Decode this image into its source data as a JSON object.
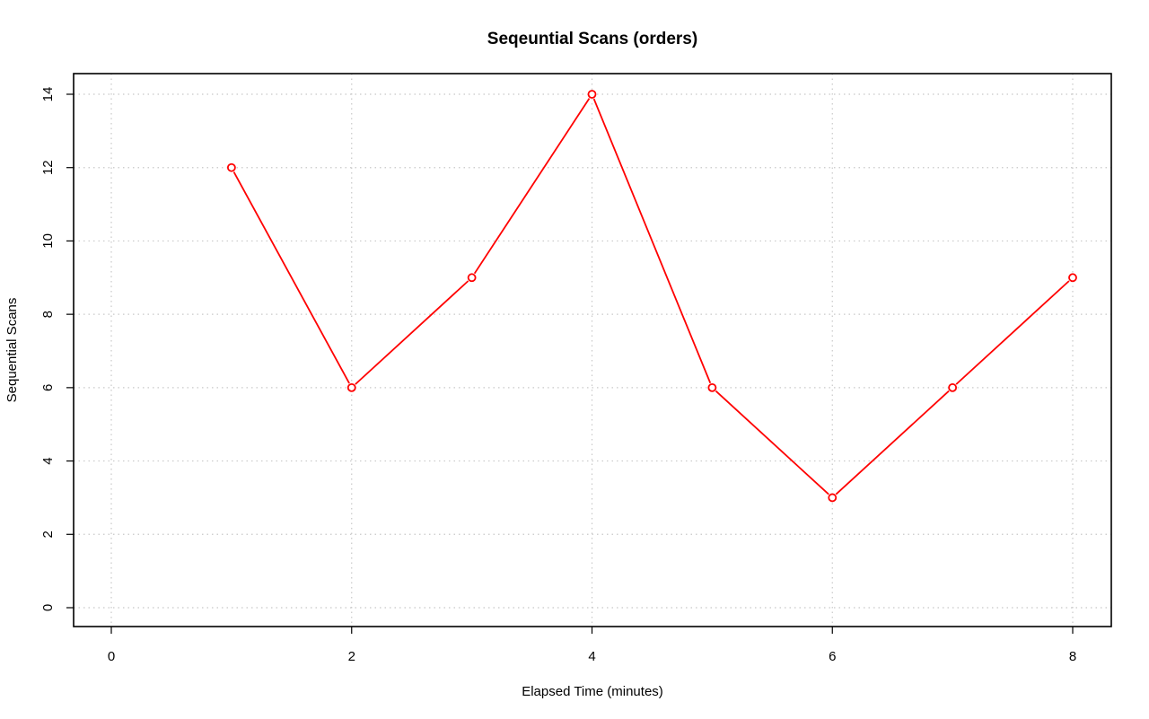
{
  "chart_data": {
    "type": "line",
    "title": "Seqeuntial Scans (orders)",
    "xlabel": "Elapsed Time (minutes)",
    "ylabel": "Sequential Scans",
    "x": [
      1,
      2,
      3,
      4,
      5,
      6,
      7,
      8
    ],
    "series": [
      {
        "values": [
          12,
          6,
          9,
          14,
          6,
          3,
          6,
          9
        ],
        "color": "#ff0000",
        "marker": "open-circle"
      }
    ],
    "xlim": [
      0,
      8
    ],
    "ylim": [
      0,
      14
    ],
    "xticks": [
      0,
      2,
      4,
      6,
      8
    ],
    "yticks": [
      0,
      2,
      4,
      6,
      8,
      10,
      12,
      14
    ],
    "grid": true,
    "grid_style": "dotted",
    "legend": "none"
  }
}
